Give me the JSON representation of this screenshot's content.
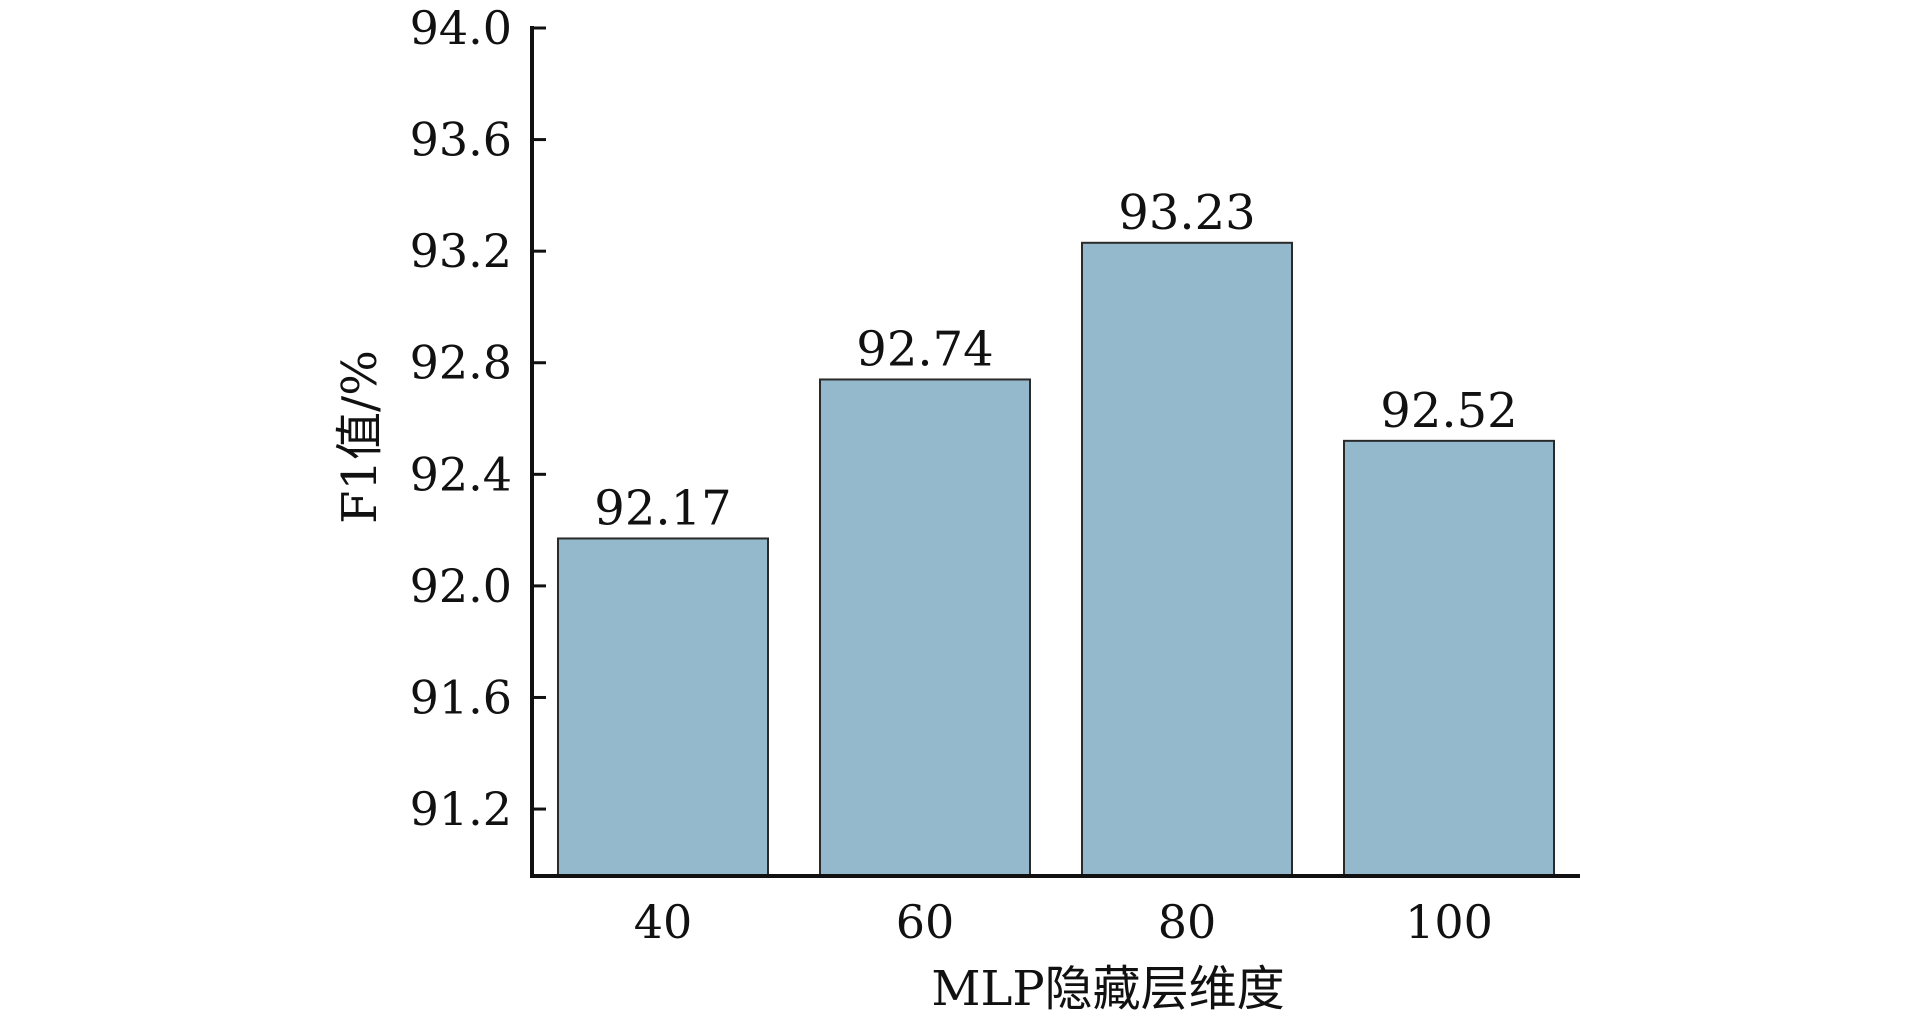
{
  "chart_data": {
    "type": "bar",
    "categories": [
      "40",
      "60",
      "80",
      "100"
    ],
    "values": [
      92.17,
      92.74,
      93.23,
      92.52
    ],
    "data_labels": [
      "92.17",
      "92.74",
      "93.23",
      "92.52"
    ],
    "xlabel": "MLP隐藏层维度",
    "ylabel": "F1值/%",
    "ylim": [
      90.96,
      94.0
    ],
    "yticks": [
      91.2,
      91.6,
      92.0,
      92.4,
      92.8,
      93.2,
      93.6,
      94.0
    ],
    "ytick_labels": [
      "91.2",
      "91.6",
      "92.0",
      "92.4",
      "92.8",
      "93.2",
      "93.6",
      "94.0"
    ],
    "grid": false,
    "legend": "none",
    "colors": {
      "bar_fill": "#94b9cc",
      "bar_stroke": "#2a2a2a",
      "axis": "#111111",
      "text": "#111111"
    }
  }
}
